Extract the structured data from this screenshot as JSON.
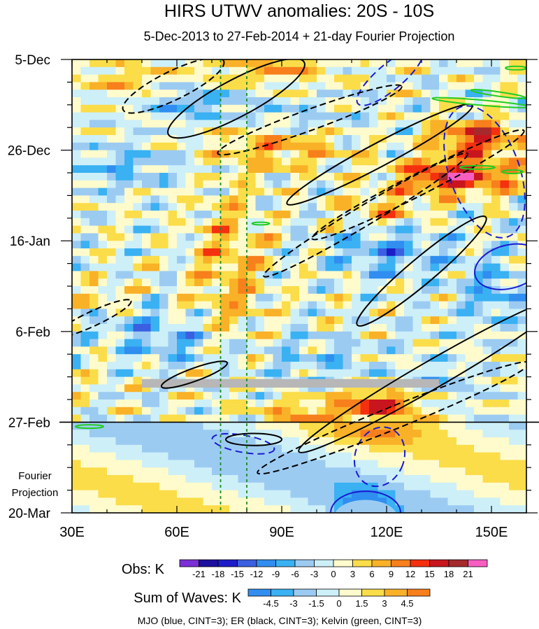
{
  "chart_data": {
    "type": "heatmap",
    "title": "HIRS UTWV anomalies: 20S - 10S",
    "subtitle": "5-Dec-2013 to 27-Feb-2014 + 21-day Fourier Projection",
    "x": {
      "min": 30,
      "max": 160,
      "ticks": [
        {
          "value": 30,
          "label": "30E"
        },
        {
          "value": 60,
          "label": "60E"
        },
        {
          "value": 90,
          "label": "90E"
        },
        {
          "value": 120,
          "label": "120E"
        },
        {
          "value": 150,
          "label": "150E"
        }
      ]
    },
    "y": {
      "min_day": 0,
      "max_day": 105,
      "ticks": [
        {
          "day": 0,
          "label": "5-Dec"
        },
        {
          "day": 21,
          "label": "26-Dec"
        },
        {
          "day": 42,
          "label": "16-Jan"
        },
        {
          "day": 63,
          "label": "6-Feb"
        },
        {
          "day": 84,
          "label": "27-Feb"
        },
        {
          "day": 105,
          "label": "20-Mar"
        }
      ]
    },
    "projection_label": [
      "Fourier",
      "Projection"
    ],
    "obs_end_day": 84,
    "reference_lines_lon": [
      72.5,
      80
    ],
    "obs_legend": {
      "label": "Obs: K",
      "levels": [
        "-21",
        "-18",
        "-15",
        "-12",
        "-9",
        "-6",
        "-3",
        "0",
        "3",
        "6",
        "9",
        "12",
        "15",
        "18",
        "21"
      ],
      "colors": [
        "#7b2fd6",
        "#1a0f9e",
        "#1c1cc8",
        "#3a5fe0",
        "#2f8ef0",
        "#3ab1f2",
        "#9ccbf2",
        "#cdeff8",
        "#fffbcc",
        "#fbdd4a",
        "#f9b128",
        "#f77f1c",
        "#f4300f",
        "#c8151e",
        "#a6292b",
        "#f75ec2"
      ]
    },
    "wave_legend": {
      "label": "Sum of Waves: K",
      "levels": [
        "-4.5",
        "-3",
        "-1.5",
        "0",
        "1.5",
        "3",
        "4.5"
      ],
      "colors": [
        "#2f8ef0",
        "#3ab1f2",
        "#9ccbf2",
        "#cdeff8",
        "#fffbcc",
        "#fbdd4a",
        "#f9b128",
        "#f77f1c"
      ]
    },
    "footer": "MJO (blue, CINT=3); ER (black, CINT=3); Kelvin (green, CINT=3)",
    "contour_colors": {
      "mjo": "#1a1ad0",
      "er": "#000000",
      "kelvin": "#22cc22",
      "missing": "#b7b7b7",
      "ref": "#1f8a1f"
    }
  }
}
